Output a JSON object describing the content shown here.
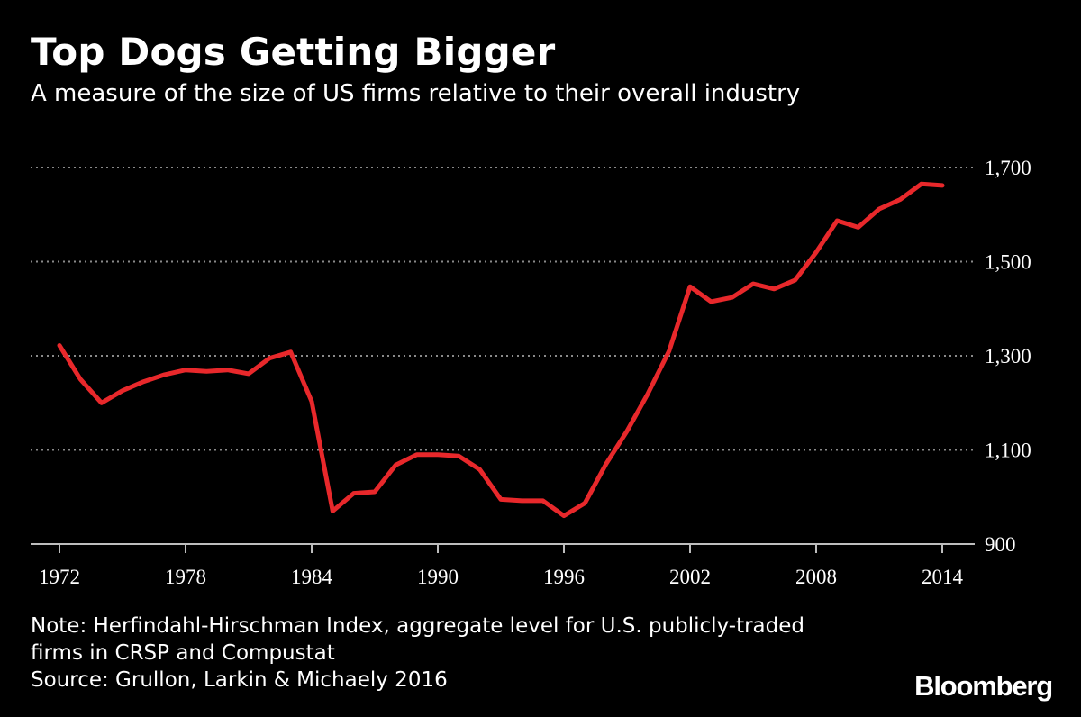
{
  "header": {
    "title": "Top Dogs Getting Bigger",
    "subtitle": "A measure of the size of US firms relative to their overall industry"
  },
  "footer": {
    "note_line1": "Note: Herfindahl-Hirschman Index, aggregate level for U.S. publicly-traded",
    "note_line2": "firms in CRSP and Compustat",
    "source": "Source: Grullon, Larkin & Michaely 2016",
    "brand": "Bloomberg"
  },
  "colors": {
    "background": "#000000",
    "line": "#e8282b",
    "grid": "#8a8a8a",
    "text": "#ffffff"
  },
  "chart_data": {
    "type": "line",
    "title": "Top Dogs Getting Bigger",
    "subtitle": "A measure of the size of US firms relative to their overall industry",
    "xlabel": "",
    "ylabel": "",
    "xlim": [
      1972,
      2014
    ],
    "ylim": [
      900,
      1700
    ],
    "x_ticks": [
      1972,
      1978,
      1984,
      1990,
      1996,
      2002,
      2008,
      2014
    ],
    "x_tick_labels": [
      "1972",
      "1978",
      "1984",
      "1990",
      "1996",
      "2002",
      "2008",
      "2014"
    ],
    "y_ticks": [
      900,
      1100,
      1300,
      1500,
      1700
    ],
    "y_tick_labels": [
      "900",
      "1,100",
      "1,300",
      "1,500",
      "1,700"
    ],
    "y_axis_side": "right",
    "grid": "horizontal-dotted",
    "series": [
      {
        "name": "Herfindahl-Hirschman Index",
        "x": [
          1972,
          1973,
          1974,
          1975,
          1976,
          1977,
          1978,
          1979,
          1980,
          1981,
          1982,
          1983,
          1984,
          1985,
          1986,
          1987,
          1988,
          1989,
          1990,
          1991,
          1992,
          1993,
          1994,
          1995,
          1996,
          1997,
          1998,
          1999,
          2000,
          2001,
          2002,
          2003,
          2004,
          2005,
          2006,
          2007,
          2008,
          2009,
          2010,
          2011,
          2012,
          2013,
          2014
        ],
        "values": [
          1322,
          1250,
          1200,
          1226,
          1245,
          1260,
          1270,
          1267,
          1270,
          1262,
          1295,
          1308,
          1203,
          970,
          1008,
          1011,
          1068,
          1090,
          1090,
          1087,
          1058,
          995,
          992,
          992,
          960,
          987,
          1070,
          1140,
          1220,
          1310,
          1447,
          1415,
          1424,
          1453,
          1442,
          1461,
          1520,
          1587,
          1573,
          1612,
          1632,
          1665,
          1662
        ]
      }
    ]
  }
}
